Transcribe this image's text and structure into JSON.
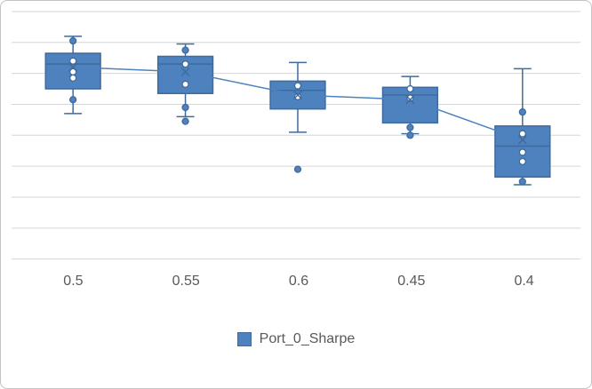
{
  "chart_data": {
    "type": "boxplot",
    "title": "",
    "categories": [
      "0.5",
      "0.55",
      "0.6",
      "0.45",
      "0.4"
    ],
    "legend_position": "bottom",
    "y_axis": {
      "labels_visible": false,
      "units": "unlabeled-gridline-units",
      "range": [
        0,
        8
      ],
      "gridline_interval": 1,
      "grid": true
    },
    "series": [
      {
        "name": "Port_0_Sharpe",
        "marker": "x-mean-marker",
        "boxes": [
          {
            "category": "0.5",
            "whisker_low": 4.7,
            "q1": 5.5,
            "median": 6.3,
            "q3": 6.65,
            "whisker_high": 7.2,
            "mean": 6.2,
            "points": [
              7.05,
              6.4,
              6.05,
              5.85,
              5.15
            ]
          },
          {
            "category": "0.55",
            "whisker_low": 4.6,
            "q1": 5.35,
            "median": 6.3,
            "q3": 6.55,
            "whisker_high": 6.95,
            "mean": 6.05,
            "points": [
              6.75,
              6.3,
              5.65,
              4.9,
              4.45
            ]
          },
          {
            "category": "0.6",
            "whisker_low": 4.1,
            "q1": 4.85,
            "median": 5.45,
            "q3": 5.75,
            "whisker_high": 6.35,
            "mean": 5.3,
            "points": [
              5.6,
              5.25,
              2.9
            ]
          },
          {
            "category": "0.45",
            "whisker_low": 4.05,
            "q1": 4.4,
            "median": 5.3,
            "q3": 5.55,
            "whisker_high": 5.9,
            "mean": 5.15,
            "points": [
              5.5,
              5.2,
              4.25,
              4.0
            ]
          },
          {
            "category": "0.4",
            "whisker_low": 2.4,
            "q1": 2.65,
            "median": 3.65,
            "q3": 4.3,
            "whisker_high": 6.15,
            "mean": 3.85,
            "points": [
              4.75,
              4.05,
              3.45,
              3.15,
              2.5
            ]
          }
        ]
      }
    ],
    "mean_connector_line": true,
    "colors": {
      "box_fill": "#4d82be",
      "box_stroke": "#3e6a9e",
      "line": "#4d82be",
      "gridline": "#d6d6d6",
      "axis_text": "#595959",
      "frame_border": "#c3c3c3"
    }
  }
}
